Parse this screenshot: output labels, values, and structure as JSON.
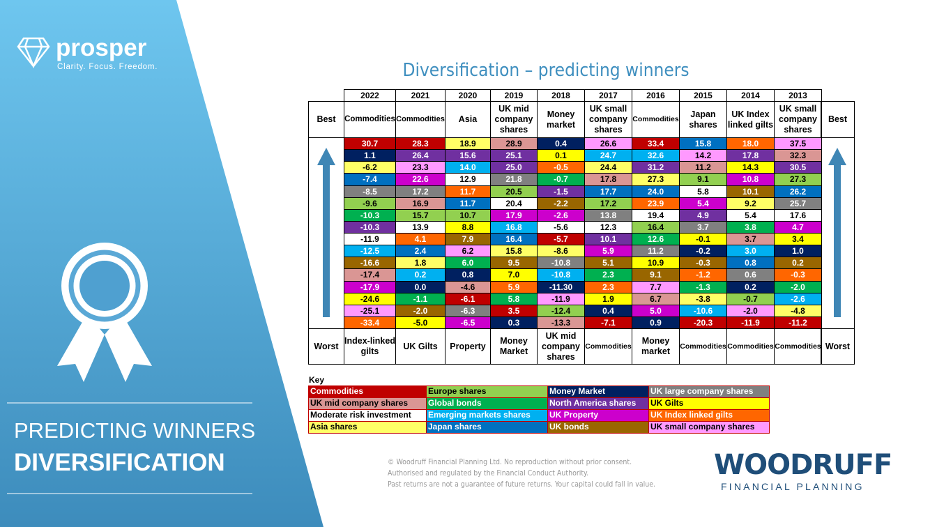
{
  "brand": {
    "name": "prosper",
    "tagline": "Clarity. Focus. Freedom."
  },
  "sidebar": {
    "line1": "PREDICTING WINNERS",
    "line2": "DIVERSIFICATION"
  },
  "title": "Diversification – predicting winners",
  "table": {
    "best_label": "Best",
    "worst_label": "Worst",
    "columns": [
      {
        "year": "2022",
        "best": "Commodities",
        "worst": "Index-linked gilts",
        "cells": [
          {
            "value": "30.7",
            "color": "#c00000"
          },
          {
            "value": "1.1",
            "color": "#002060"
          },
          {
            "value": "-6.2",
            "color": "#ffff66"
          },
          {
            "value": "-7.4",
            "color": "#0070c0"
          },
          {
            "value": "-8.5",
            "color": "#808080"
          },
          {
            "value": "-9.6",
            "color": "#92d050"
          },
          {
            "value": "-10.3",
            "color": "#00b050"
          },
          {
            "value": "-10.3",
            "color": "#7030a0"
          },
          {
            "value": "-11.9",
            "color": "#ffffff"
          },
          {
            "value": "-12.5",
            "color": "#00b0f0"
          },
          {
            "value": "-16.6",
            "color": "#996600"
          },
          {
            "value": "-17.4",
            "color": "#da9694"
          },
          {
            "value": "-17.9",
            "color": "#cc00cc"
          },
          {
            "value": "-24.6",
            "color": "#ffff00"
          },
          {
            "value": "-25.1",
            "color": "#ff99ff"
          },
          {
            "value": "-33.4",
            "color": "#ff6600"
          }
        ]
      },
      {
        "year": "2021",
        "best": "Commodities",
        "worst": "UK Gilts",
        "cells": [
          {
            "value": "28.3",
            "color": "#c00000"
          },
          {
            "value": "26.4",
            "color": "#7030a0"
          },
          {
            "value": "23.3",
            "color": "#ff99ff"
          },
          {
            "value": "22.6",
            "color": "#cc00cc"
          },
          {
            "value": "17.2",
            "color": "#808080"
          },
          {
            "value": "16.9",
            "color": "#da9694"
          },
          {
            "value": "15.7",
            "color": "#92d050"
          },
          {
            "value": "13.9",
            "color": "#ffffff"
          },
          {
            "value": "4.1",
            "color": "#ff6600"
          },
          {
            "value": "2.4",
            "color": "#0070c0"
          },
          {
            "value": "1.8",
            "color": "#ffff66"
          },
          {
            "value": "0.2",
            "color": "#00b0f0"
          },
          {
            "value": "0.0",
            "color": "#002060"
          },
          {
            "value": "-1.1",
            "color": "#00b050"
          },
          {
            "value": "-2.0",
            "color": "#996600"
          },
          {
            "value": "-5.0",
            "color": "#ffff00"
          }
        ]
      },
      {
        "year": "2020",
        "best": "Asia",
        "worst": "Property",
        "cells": [
          {
            "value": "18.9",
            "color": "#ffff66"
          },
          {
            "value": "15.6",
            "color": "#7030a0"
          },
          {
            "value": "14.0",
            "color": "#00b0f0"
          },
          {
            "value": "12.9",
            "color": "#ffffff"
          },
          {
            "value": "11.7",
            "color": "#ff6600"
          },
          {
            "value": "11.7",
            "color": "#0070c0"
          },
          {
            "value": "10.7",
            "color": "#92d050"
          },
          {
            "value": "8.8",
            "color": "#ffff00"
          },
          {
            "value": "7.9",
            "color": "#996600"
          },
          {
            "value": "6.2",
            "color": "#ff99ff"
          },
          {
            "value": "6.0",
            "color": "#00b050"
          },
          {
            "value": "0.8",
            "color": "#002060"
          },
          {
            "value": "-4.6",
            "color": "#da9694"
          },
          {
            "value": "-6.1",
            "color": "#c00000"
          },
          {
            "value": "-6.3",
            "color": "#808080"
          },
          {
            "value": "-6.5",
            "color": "#cc00cc"
          }
        ]
      },
      {
        "year": "2019",
        "best": "UK mid company shares",
        "worst": "Money Market",
        "cells": [
          {
            "value": "28.9",
            "color": "#da9694"
          },
          {
            "value": "25.1",
            "color": "#7030a0"
          },
          {
            "value": "25.0",
            "color": "#7030a0"
          },
          {
            "value": "21.8",
            "color": "#808080"
          },
          {
            "value": "20.5",
            "color": "#92d050"
          },
          {
            "value": "20.4",
            "color": "#ffffff"
          },
          {
            "value": "17.9",
            "color": "#cc00cc"
          },
          {
            "value": "16.8",
            "color": "#00b0f0"
          },
          {
            "value": "16.4",
            "color": "#0070c0"
          },
          {
            "value": "15.8",
            "color": "#ffff66"
          },
          {
            "value": "9.5",
            "color": "#996600"
          },
          {
            "value": "7.0",
            "color": "#ffff00"
          },
          {
            "value": "5.9",
            "color": "#ff6600"
          },
          {
            "value": "5.8",
            "color": "#00b050"
          },
          {
            "value": "3.5",
            "color": "#c00000"
          },
          {
            "value": "0.3",
            "color": "#002060"
          }
        ]
      },
      {
        "year": "2018",
        "best": "Money market",
        "worst": "UK mid company shares",
        "cells": [
          {
            "value": "0.4",
            "color": "#002060"
          },
          {
            "value": "0.1",
            "color": "#ffff00"
          },
          {
            "value": "-0.5",
            "color": "#ff6600"
          },
          {
            "value": "-0.7",
            "color": "#00b050"
          },
          {
            "value": "-1.5",
            "color": "#7030a0"
          },
          {
            "value": "-2.2",
            "color": "#996600"
          },
          {
            "value": "-2.6",
            "color": "#cc00cc"
          },
          {
            "value": "-5.6",
            "color": "#ffffff"
          },
          {
            "value": "-5.7",
            "color": "#c00000"
          },
          {
            "value": "-8.6",
            "color": "#ffff66"
          },
          {
            "value": "-10.8",
            "color": "#808080"
          },
          {
            "value": "-10.8",
            "color": "#00b0f0"
          },
          {
            "value": "-11.30",
            "color": "#002060"
          },
          {
            "value": "-11.9",
            "color": "#ff99ff"
          },
          {
            "value": "-12.4",
            "color": "#92d050"
          },
          {
            "value": "-13.3",
            "color": "#da9694"
          }
        ]
      },
      {
        "year": "2017",
        "best": "UK small company shares",
        "worst": "Commodities",
        "cells": [
          {
            "value": "26.6",
            "color": "#ff99ff"
          },
          {
            "value": "24.7",
            "color": "#00b0f0"
          },
          {
            "value": "24.4",
            "color": "#ffff66"
          },
          {
            "value": "17.8",
            "color": "#da9694"
          },
          {
            "value": "17.7",
            "color": "#0070c0"
          },
          {
            "value": "17.2",
            "color": "#92d050"
          },
          {
            "value": "13.8",
            "color": "#808080"
          },
          {
            "value": "12.3",
            "color": "#ffffff"
          },
          {
            "value": "10.1",
            "color": "#7030a0"
          },
          {
            "value": "5.9",
            "color": "#cc00cc"
          },
          {
            "value": "5.1",
            "color": "#996600"
          },
          {
            "value": "2.3",
            "color": "#00b050"
          },
          {
            "value": "2.3",
            "color": "#ff6600"
          },
          {
            "value": "1.9",
            "color": "#ffff00"
          },
          {
            "value": "0.4",
            "color": "#002060"
          },
          {
            "value": "-7.1",
            "color": "#c00000"
          }
        ]
      },
      {
        "year": "2016",
        "best": "Commodities",
        "worst": "Money market",
        "cells": [
          {
            "value": "33.4",
            "color": "#c00000"
          },
          {
            "value": "32.6",
            "color": "#00b0f0"
          },
          {
            "value": "31.2",
            "color": "#7030a0"
          },
          {
            "value": "27.3",
            "color": "#ffff66"
          },
          {
            "value": "24.0",
            "color": "#0070c0"
          },
          {
            "value": "23.9",
            "color": "#ff6600"
          },
          {
            "value": "19.4",
            "color": "#ffffff"
          },
          {
            "value": "16.4",
            "color": "#92d050"
          },
          {
            "value": "12.6",
            "color": "#00b050"
          },
          {
            "value": "11.2",
            "color": "#808080"
          },
          {
            "value": "10.9",
            "color": "#ffff00"
          },
          {
            "value": "9.1",
            "color": "#996600"
          },
          {
            "value": "7.7",
            "color": "#ff99ff"
          },
          {
            "value": "6.7",
            "color": "#da9694"
          },
          {
            "value": "5.0",
            "color": "#cc00cc"
          },
          {
            "value": "0.9",
            "color": "#002060"
          }
        ]
      },
      {
        "year": "2015",
        "best": "Japan shares",
        "worst": "Commodities",
        "cells": [
          {
            "value": "15.8",
            "color": "#0070c0"
          },
          {
            "value": "14.2",
            "color": "#ff99ff"
          },
          {
            "value": "11.2",
            "color": "#da9694"
          },
          {
            "value": "9.1",
            "color": "#92d050"
          },
          {
            "value": "5.8",
            "color": "#ffffff"
          },
          {
            "value": "5.4",
            "color": "#cc00cc"
          },
          {
            "value": "4.9",
            "color": "#7030a0"
          },
          {
            "value": "3.7",
            "color": "#808080"
          },
          {
            "value": "-0.1",
            "color": "#ffff00"
          },
          {
            "value": "-0.2",
            "color": "#002060"
          },
          {
            "value": "-0.3",
            "color": "#996600"
          },
          {
            "value": "-1.2",
            "color": "#ff6600"
          },
          {
            "value": "-1.3",
            "color": "#00b050"
          },
          {
            "value": "-3.8",
            "color": "#ffff66"
          },
          {
            "value": "-10.6",
            "color": "#00b0f0"
          },
          {
            "value": "-20.3",
            "color": "#c00000"
          }
        ]
      },
      {
        "year": "2014",
        "best": "UK Index linked gilts",
        "worst": "Commodities",
        "cells": [
          {
            "value": "18.0",
            "color": "#ff6600"
          },
          {
            "value": "17.8",
            "color": "#7030a0"
          },
          {
            "value": "14.3",
            "color": "#ffff00"
          },
          {
            "value": "10.8",
            "color": "#cc00cc"
          },
          {
            "value": "10.1",
            "color": "#996600"
          },
          {
            "value": "9.2",
            "color": "#ffff66"
          },
          {
            "value": "5.4",
            "color": "#ffffff"
          },
          {
            "value": "3.8",
            "color": "#00b050"
          },
          {
            "value": "3.7",
            "color": "#da9694"
          },
          {
            "value": "3.0",
            "color": "#00b0f0"
          },
          {
            "value": "0.8",
            "color": "#0070c0"
          },
          {
            "value": "0.6",
            "color": "#808080"
          },
          {
            "value": "0.2",
            "color": "#002060"
          },
          {
            "value": "-0.7",
            "color": "#92d050"
          },
          {
            "value": "-2.0",
            "color": "#ff99ff"
          },
          {
            "value": "-11.9",
            "color": "#c00000"
          }
        ]
      },
      {
        "year": "2013",
        "best": "UK small company shares",
        "worst": "Commodities",
        "cells": [
          {
            "value": "37.5",
            "color": "#ff99ff"
          },
          {
            "value": "32.3",
            "color": "#da9694"
          },
          {
            "value": "30.5",
            "color": "#7030a0"
          },
          {
            "value": "27.3",
            "color": "#92d050"
          },
          {
            "value": "26.2",
            "color": "#0070c0"
          },
          {
            "value": "25.7",
            "color": "#808080"
          },
          {
            "value": "17.6",
            "color": "#ffffff"
          },
          {
            "value": "4.7",
            "color": "#cc00cc"
          },
          {
            "value": "3.4",
            "color": "#ffff00"
          },
          {
            "value": "1.0",
            "color": "#002060"
          },
          {
            "value": "0.2",
            "color": "#996600"
          },
          {
            "value": "-0.3",
            "color": "#ff6600"
          },
          {
            "value": "-2.0",
            "color": "#00b050"
          },
          {
            "value": "-2.6",
            "color": "#00b0f0"
          },
          {
            "value": "-4.8",
            "color": "#ffff66"
          },
          {
            "value": "-11.2",
            "color": "#c00000"
          }
        ]
      }
    ]
  },
  "key": {
    "title": "Key",
    "items": [
      {
        "label": "Commodities",
        "color": "#c00000"
      },
      {
        "label": "Europe shares",
        "color": "#92d050"
      },
      {
        "label": "Money Market",
        "color": "#002060"
      },
      {
        "label": "UK large company shares",
        "color": "#808080"
      },
      {
        "label": "UK mid company shares",
        "color": "#da9694"
      },
      {
        "label": "Global bonds",
        "color": "#00b050"
      },
      {
        "label": "North America shares",
        "color": "#7030a0"
      },
      {
        "label": "UK Gilts",
        "color": "#ffff00"
      },
      {
        "label": "Moderate risk investment",
        "color": "#ffffff"
      },
      {
        "label": "Emerging markets shares",
        "color": "#00b0f0"
      },
      {
        "label": "UK Property",
        "color": "#cc00cc"
      },
      {
        "label": "UK Index linked gilts",
        "color": "#ff6600"
      },
      {
        "label": "Asia shares",
        "color": "#ffff66"
      },
      {
        "label": "Japan shares",
        "color": "#0070c0"
      },
      {
        "label": "UK bonds",
        "color": "#996600"
      },
      {
        "label": "UK small company shares",
        "color": "#ff99ff"
      }
    ]
  },
  "footer": [
    "© Woodruff Financial Planning Ltd. No reproduction without prior consent.",
    "Authorised and regulated by the Financial Conduct Authority.",
    "Past returns are not a guarantee of future returns. Your capital could fall in value."
  ],
  "logo": {
    "name": "WOODRUFF",
    "tagline": "FINANCIAL PLANNING"
  }
}
